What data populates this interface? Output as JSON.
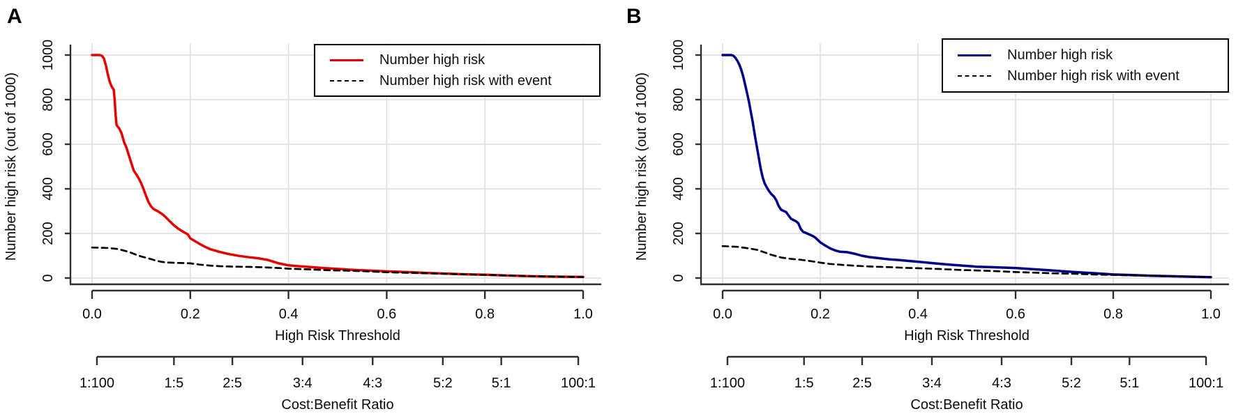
{
  "figure_colors": {
    "panel_a_solid": "#e60000",
    "panel_b_solid": "#00008b",
    "dashed_line": "#000000",
    "grid": "#dcdcdc",
    "axis": "#2f2f2f"
  },
  "chart_data": [
    {
      "type": "line",
      "panel_label": "A",
      "xlabel": "High Risk Threshold",
      "ylabel": "Number high risk (out of 1000)",
      "x2label": "Cost:Benefit Ratio",
      "xlim": [
        0,
        1
      ],
      "ylim": [
        0,
        1000
      ],
      "grid": true,
      "legend_position": "topright",
      "x_ticks": [
        0.0,
        0.2,
        0.4,
        0.6,
        0.8,
        1.0
      ],
      "x_tick_labels": [
        "0.0",
        "0.2",
        "0.4",
        "0.6",
        "0.8",
        "1.0"
      ],
      "y_ticks": [
        0,
        200,
        400,
        600,
        800,
        1000
      ],
      "y_tick_labels": [
        "0",
        "200",
        "400",
        "600",
        "800",
        "1000"
      ],
      "x2_ticks": [
        {
          "label": "1:100",
          "x": 0.0099
        },
        {
          "label": "1:5",
          "x": 0.1667
        },
        {
          "label": "2:5",
          "x": 0.2857
        },
        {
          "label": "3:4",
          "x": 0.4286
        },
        {
          "label": "4:3",
          "x": 0.5714
        },
        {
          "label": "5:2",
          "x": 0.7143
        },
        {
          "label": "5:1",
          "x": 0.8333
        },
        {
          "label": "100:1",
          "x": 0.9901
        }
      ],
      "series": [
        {
          "name": "Number high risk",
          "color": "#e60000",
          "line_style": "solid",
          "points": [
            [
              0,
              1000
            ],
            [
              0.015,
              1000
            ],
            [
              0.02,
              997
            ],
            [
              0.024,
              985
            ],
            [
              0.028,
              955
            ],
            [
              0.032,
              915
            ],
            [
              0.036,
              880
            ],
            [
              0.04,
              858
            ],
            [
              0.044,
              845
            ],
            [
              0.046,
              800
            ],
            [
              0.048,
              730
            ],
            [
              0.05,
              685
            ],
            [
              0.055,
              672
            ],
            [
              0.06,
              650
            ],
            [
              0.065,
              610
            ],
            [
              0.07,
              585
            ],
            [
              0.075,
              550
            ],
            [
              0.08,
              515
            ],
            [
              0.085,
              482
            ],
            [
              0.09,
              465
            ],
            [
              0.095,
              447
            ],
            [
              0.1,
              425
            ],
            [
              0.105,
              398
            ],
            [
              0.11,
              368
            ],
            [
              0.115,
              340
            ],
            [
              0.12,
              322
            ],
            [
              0.125,
              310
            ],
            [
              0.135,
              298
            ],
            [
              0.145,
              283
            ],
            [
              0.155,
              262
            ],
            [
              0.165,
              240
            ],
            [
              0.175,
              222
            ],
            [
              0.185,
              208
            ],
            [
              0.195,
              196
            ],
            [
              0.2,
              178
            ],
            [
              0.21,
              165
            ],
            [
              0.22,
              152
            ],
            [
              0.23,
              140
            ],
            [
              0.24,
              130
            ],
            [
              0.26,
              117
            ],
            [
              0.28,
              107
            ],
            [
              0.3,
              99
            ],
            [
              0.32,
              93
            ],
            [
              0.34,
              88
            ],
            [
              0.36,
              80
            ],
            [
              0.38,
              66
            ],
            [
              0.4,
              57
            ],
            [
              0.42,
              53
            ],
            [
              0.44,
              50
            ],
            [
              0.47,
              45
            ],
            [
              0.5,
              41
            ],
            [
              0.53,
              37
            ],
            [
              0.56,
              34
            ],
            [
              0.6,
              30
            ],
            [
              0.64,
              27
            ],
            [
              0.68,
              23
            ],
            [
              0.72,
              20
            ],
            [
              0.76,
              17
            ],
            [
              0.8,
              15
            ],
            [
              0.84,
              12
            ],
            [
              0.88,
              9
            ],
            [
              0.92,
              7
            ],
            [
              0.96,
              6
            ],
            [
              1,
              5
            ]
          ]
        },
        {
          "name": "Number high risk with event",
          "color": "#000000",
          "line_style": "dashed",
          "points": [
            [
              0,
              137
            ],
            [
              0.03,
              135
            ],
            [
              0.05,
              131
            ],
            [
              0.06,
              126
            ],
            [
              0.07,
              120
            ],
            [
              0.08,
              113
            ],
            [
              0.09,
              104
            ],
            [
              0.1,
              97
            ],
            [
              0.11,
              91
            ],
            [
              0.12,
              85
            ],
            [
              0.13,
              78
            ],
            [
              0.14,
              73
            ],
            [
              0.15,
              70
            ],
            [
              0.17,
              68
            ],
            [
              0.19,
              67
            ],
            [
              0.2,
              66
            ],
            [
              0.22,
              60
            ],
            [
              0.24,
              56
            ],
            [
              0.26,
              53
            ],
            [
              0.29,
              51
            ],
            [
              0.32,
              50
            ],
            [
              0.35,
              48
            ],
            [
              0.38,
              45
            ],
            [
              0.4,
              42
            ],
            [
              0.44,
              39
            ],
            [
              0.48,
              35
            ],
            [
              0.52,
              33
            ],
            [
              0.56,
              30
            ],
            [
              0.6,
              26
            ],
            [
              0.65,
              23
            ],
            [
              0.7,
              20
            ],
            [
              0.75,
              17
            ],
            [
              0.8,
              14
            ],
            [
              0.85,
              11
            ],
            [
              0.9,
              8
            ],
            [
              0.95,
              6
            ],
            [
              1,
              4
            ]
          ]
        }
      ]
    },
    {
      "type": "line",
      "panel_label": "B",
      "xlabel": "High Risk Threshold",
      "ylabel": "Number high risk (out of 1000)",
      "x2label": "Cost:Benefit Ratio",
      "xlim": [
        0,
        1
      ],
      "ylim": [
        0,
        1000
      ],
      "grid": true,
      "legend_position": "topright",
      "x_ticks": [
        0.0,
        0.2,
        0.4,
        0.6,
        0.8,
        1.0
      ],
      "x_tick_labels": [
        "0.0",
        "0.2",
        "0.4",
        "0.6",
        "0.8",
        "1.0"
      ],
      "y_ticks": [
        0,
        200,
        400,
        600,
        800,
        1000
      ],
      "y_tick_labels": [
        "0",
        "200",
        "400",
        "600",
        "800",
        "1000"
      ],
      "x2_ticks": [
        {
          "label": "1:100",
          "x": 0.0099
        },
        {
          "label": "1:5",
          "x": 0.1667
        },
        {
          "label": "2:5",
          "x": 0.2857
        },
        {
          "label": "3:4",
          "x": 0.4286
        },
        {
          "label": "4:3",
          "x": 0.5714
        },
        {
          "label": "5:2",
          "x": 0.7143
        },
        {
          "label": "5:1",
          "x": 0.8333
        },
        {
          "label": "100:1",
          "x": 0.9901
        }
      ],
      "series": [
        {
          "name": "Number high risk",
          "color": "#00008b",
          "line_style": "solid",
          "points": [
            [
              0,
              1000
            ],
            [
              0.018,
              1000
            ],
            [
              0.022,
              997
            ],
            [
              0.026,
              988
            ],
            [
              0.03,
              975
            ],
            [
              0.034,
              958
            ],
            [
              0.038,
              935
            ],
            [
              0.042,
              905
            ],
            [
              0.046,
              868
            ],
            [
              0.05,
              830
            ],
            [
              0.054,
              790
            ],
            [
              0.058,
              742
            ],
            [
              0.062,
              695
            ],
            [
              0.066,
              640
            ],
            [
              0.07,
              590
            ],
            [
              0.074,
              540
            ],
            [
              0.078,
              490
            ],
            [
              0.082,
              452
            ],
            [
              0.086,
              425
            ],
            [
              0.09,
              408
            ],
            [
              0.095,
              390
            ],
            [
              0.1,
              376
            ],
            [
              0.105,
              366
            ],
            [
              0.11,
              348
            ],
            [
              0.115,
              322
            ],
            [
              0.12,
              306
            ],
            [
              0.13,
              296
            ],
            [
              0.135,
              281
            ],
            [
              0.14,
              266
            ],
            [
              0.15,
              255
            ],
            [
              0.155,
              246
            ],
            [
              0.16,
              220
            ],
            [
              0.165,
              207
            ],
            [
              0.175,
              198
            ],
            [
              0.185,
              188
            ],
            [
              0.19,
              181
            ],
            [
              0.2,
              160
            ],
            [
              0.21,
              146
            ],
            [
              0.22,
              133
            ],
            [
              0.23,
              124
            ],
            [
              0.24,
              118
            ],
            [
              0.255,
              116
            ],
            [
              0.27,
              109
            ],
            [
              0.285,
              100
            ],
            [
              0.3,
              94
            ],
            [
              0.32,
              89
            ],
            [
              0.34,
              84
            ],
            [
              0.36,
              81
            ],
            [
              0.38,
              77
            ],
            [
              0.4,
              73
            ],
            [
              0.43,
              67
            ],
            [
              0.46,
              61
            ],
            [
              0.49,
              56
            ],
            [
              0.52,
              51
            ],
            [
              0.56,
              48
            ],
            [
              0.6,
              45
            ],
            [
              0.64,
              39
            ],
            [
              0.68,
              33
            ],
            [
              0.72,
              27
            ],
            [
              0.76,
              22
            ],
            [
              0.8,
              16
            ],
            [
              0.84,
              13
            ],
            [
              0.88,
              10
            ],
            [
              0.92,
              8
            ],
            [
              0.96,
              6
            ],
            [
              1,
              4
            ]
          ]
        },
        {
          "name": "Number high risk with event",
          "color": "#000000",
          "line_style": "dashed",
          "points": [
            [
              0,
              143
            ],
            [
              0.03,
              140
            ],
            [
              0.05,
              134
            ],
            [
              0.07,
              127
            ],
            [
              0.09,
              112
            ],
            [
              0.1,
              104
            ],
            [
              0.12,
              92
            ],
            [
              0.14,
              86
            ],
            [
              0.16,
              82
            ],
            [
              0.18,
              76
            ],
            [
              0.2,
              69
            ],
            [
              0.22,
              63
            ],
            [
              0.25,
              58
            ],
            [
              0.28,
              54
            ],
            [
              0.31,
              51
            ],
            [
              0.34,
              49
            ],
            [
              0.37,
              46
            ],
            [
              0.4,
              44
            ],
            [
              0.44,
              41
            ],
            [
              0.48,
              37
            ],
            [
              0.52,
              34
            ],
            [
              0.56,
              31
            ],
            [
              0.6,
              27
            ],
            [
              0.64,
              24
            ],
            [
              0.68,
              21
            ],
            [
              0.72,
              19
            ],
            [
              0.76,
              16
            ],
            [
              0.8,
              14
            ],
            [
              0.85,
              11
            ],
            [
              0.9,
              8
            ],
            [
              0.95,
              6
            ],
            [
              1,
              4
            ]
          ]
        }
      ]
    }
  ]
}
